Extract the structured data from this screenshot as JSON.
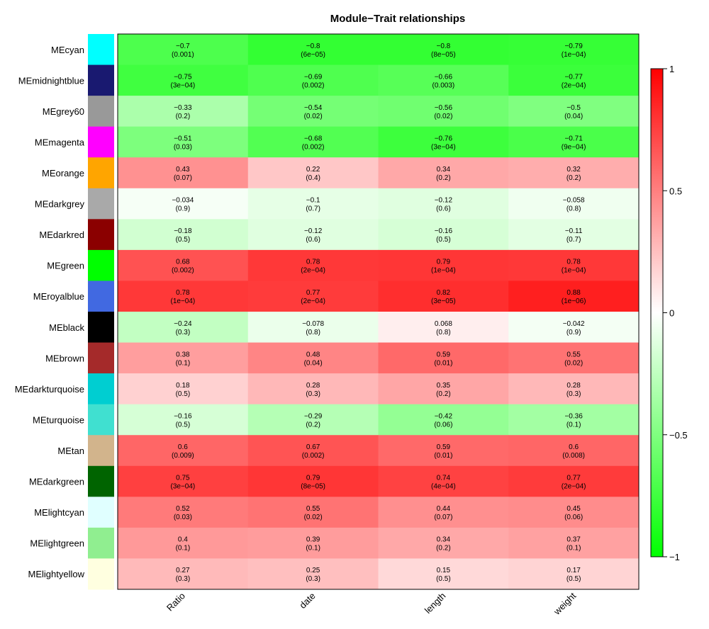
{
  "chart_data": {
    "type": "heatmap",
    "title": "Module−Trait relationships",
    "columns": [
      "Ratio",
      "date",
      "length",
      "weight"
    ],
    "rows": [
      {
        "label": "MEcyan",
        "color": "#00ffff",
        "values": [
          -0.7,
          -0.8,
          -0.8,
          -0.79
        ],
        "pvalues": [
          "0.001",
          "6e−05",
          "8e−05",
          "1e−04"
        ]
      },
      {
        "label": "MEmidnightblue",
        "color": "#191970",
        "values": [
          -0.75,
          -0.69,
          -0.66,
          -0.77
        ],
        "pvalues": [
          "3e−04",
          "0.002",
          "0.003",
          "2e−04"
        ]
      },
      {
        "label": "MEgrey60",
        "color": "#999999",
        "values": [
          -0.33,
          -0.54,
          -0.56,
          -0.5
        ],
        "pvalues": [
          "0.2",
          "0.02",
          "0.02",
          "0.04"
        ]
      },
      {
        "label": "MEmagenta",
        "color": "#ff00ff",
        "values": [
          -0.51,
          -0.68,
          -0.76,
          -0.71
        ],
        "pvalues": [
          "0.03",
          "0.002",
          "3e−04",
          "9e−04"
        ]
      },
      {
        "label": "MEorange",
        "color": "#ffa500",
        "values": [
          0.43,
          0.22,
          0.34,
          0.32
        ],
        "pvalues": [
          "0.07",
          "0.4",
          "0.2",
          "0.2"
        ]
      },
      {
        "label": "MEdarkgrey",
        "color": "#a9a9a9",
        "values": [
          -0.034,
          -0.1,
          -0.12,
          -0.058
        ],
        "pvalues": [
          "0.9",
          "0.7",
          "0.6",
          "0.8"
        ]
      },
      {
        "label": "MEdarkred",
        "color": "#8b0000",
        "values": [
          -0.18,
          -0.12,
          -0.16,
          -0.11
        ],
        "pvalues": [
          "0.5",
          "0.6",
          "0.5",
          "0.7"
        ]
      },
      {
        "label": "MEgreen",
        "color": "#00ff00",
        "values": [
          0.68,
          0.78,
          0.79,
          0.78
        ],
        "pvalues": [
          "0.002",
          "2e−04",
          "1e−04",
          "1e−04"
        ]
      },
      {
        "label": "MEroyalblue",
        "color": "#4169e1",
        "values": [
          0.78,
          0.77,
          0.82,
          0.88
        ],
        "pvalues": [
          "1e−04",
          "2e−04",
          "3e−05",
          "1e−06"
        ]
      },
      {
        "label": "MEblack",
        "color": "#000000",
        "values": [
          -0.24,
          -0.078,
          0.068,
          -0.042
        ],
        "pvalues": [
          "0.3",
          "0.8",
          "0.8",
          "0.9"
        ]
      },
      {
        "label": "MEbrown",
        "color": "#a52a2a",
        "values": [
          0.38,
          0.48,
          0.59,
          0.55
        ],
        "pvalues": [
          "0.1",
          "0.04",
          "0.01",
          "0.02"
        ]
      },
      {
        "label": "MEdarkturquoise",
        "color": "#00ced1",
        "values": [
          0.18,
          0.28,
          0.35,
          0.28
        ],
        "pvalues": [
          "0.5",
          "0.3",
          "0.2",
          "0.3"
        ]
      },
      {
        "label": "MEturquoise",
        "color": "#40e0d0",
        "values": [
          -0.16,
          -0.29,
          -0.42,
          -0.36
        ],
        "pvalues": [
          "0.5",
          "0.2",
          "0.06",
          "0.1"
        ]
      },
      {
        "label": "MEtan",
        "color": "#d2b48c",
        "values": [
          0.6,
          0.67,
          0.59,
          0.6
        ],
        "pvalues": [
          "0.009",
          "0.002",
          "0.01",
          "0.008"
        ]
      },
      {
        "label": "MEdarkgreen",
        "color": "#006400",
        "values": [
          0.75,
          0.79,
          0.74,
          0.77
        ],
        "pvalues": [
          "3e−04",
          "8e−05",
          "4e−04",
          "2e−04"
        ]
      },
      {
        "label": "MElightcyan",
        "color": "#e0ffff",
        "values": [
          0.52,
          0.55,
          0.44,
          0.45
        ],
        "pvalues": [
          "0.03",
          "0.02",
          "0.07",
          "0.06"
        ]
      },
      {
        "label": "MElightgreen",
        "color": "#90ee90",
        "values": [
          0.4,
          0.39,
          0.34,
          0.37
        ],
        "pvalues": [
          "0.1",
          "0.1",
          "0.2",
          "0.1"
        ]
      },
      {
        "label": "MElightyellow",
        "color": "#ffffe0",
        "values": [
          0.27,
          0.25,
          0.15,
          0.17
        ],
        "pvalues": [
          "0.3",
          "0.3",
          "0.5",
          "0.5"
        ]
      }
    ],
    "colorscale": {
      "min": -1,
      "max": 1,
      "low_color": "#00ff00",
      "mid_color": "#ffffff",
      "high_color": "#ff0000"
    },
    "legend": {
      "placement": "right",
      "ticks": [
        "1",
        "0.5",
        "0",
        "−0.5",
        "−1"
      ],
      "tick_values": [
        1,
        0.5,
        0,
        -0.5,
        -1
      ]
    }
  }
}
